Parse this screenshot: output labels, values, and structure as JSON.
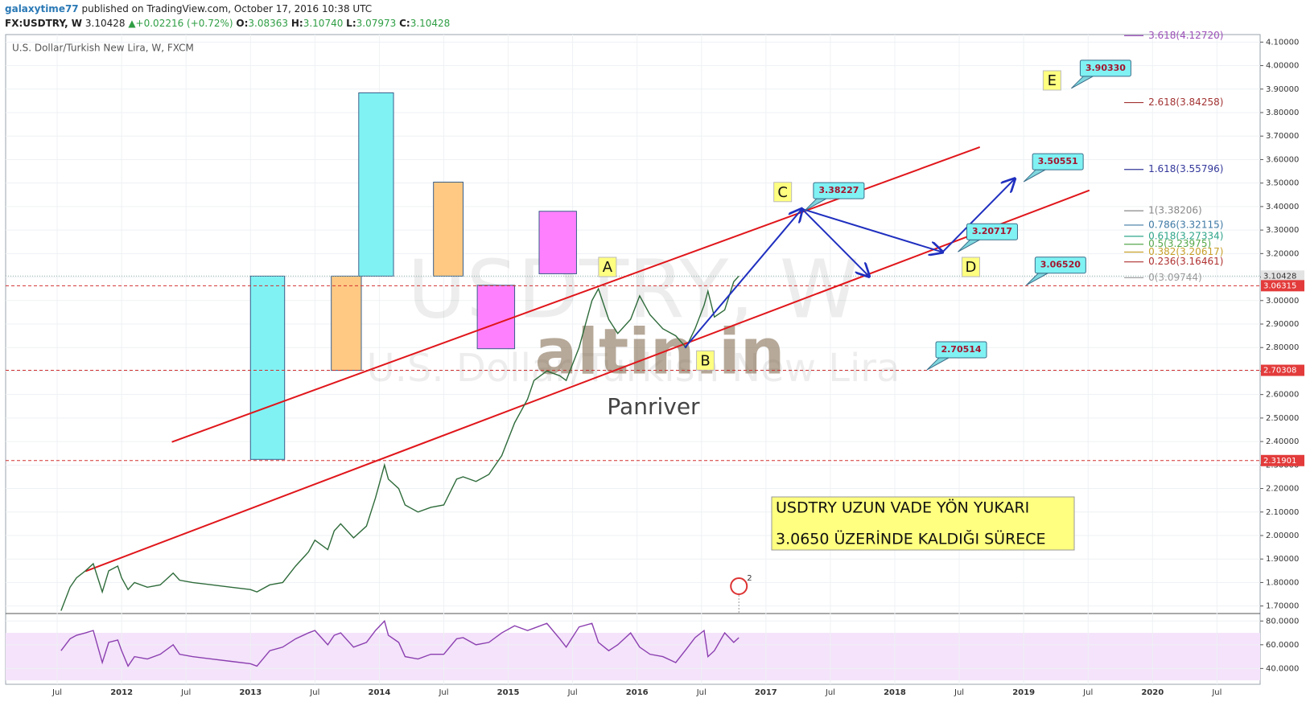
{
  "header": {
    "author": "galaxytime77",
    "published": "published on TradingView.com, October 17, 2016 10:38 UTC",
    "symbol": "FX:USDTRY, W",
    "last": "3.10428",
    "change": "▲+0.02216 (+0.72%)",
    "ohlc": [
      {
        "key": "O:",
        "value": "3.08363"
      },
      {
        "key": "H:",
        "value": "3.10740"
      },
      {
        "key": "L:",
        "value": "3.07973"
      },
      {
        "key": "C:",
        "value": "3.10428"
      }
    ]
  },
  "chart_data": [
    {
      "type": "line",
      "title": "U.S. Dollar/Turkish New Lira, W, FXCM",
      "watermark": "USDTRY, W",
      "watermark_subtitle": "U.S. Dollar/Turkish New Lira",
      "logo": "altin.in",
      "logo_caption": "Panriver",
      "color": "#2e6b3a",
      "grid": true,
      "x": [
        2011.53,
        2011.6,
        2011.65,
        2011.72,
        2011.78,
        2011.85,
        2011.9,
        2011.97,
        2012.0,
        2012.05,
        2012.1,
        2012.2,
        2012.3,
        2012.4,
        2012.45,
        2012.55,
        2012.7,
        2012.85,
        2013.0,
        2013.05,
        2013.15,
        2013.25,
        2013.35,
        2013.45,
        2013.5,
        2013.6,
        2013.65,
        2013.7,
        2013.8,
        2013.9,
        2013.97,
        2014.04,
        2014.07,
        2014.15,
        2014.2,
        2014.3,
        2014.4,
        2014.5,
        2014.6,
        2014.65,
        2014.75,
        2014.85,
        2014.95,
        2015.05,
        2015.15,
        2015.2,
        2015.3,
        2015.4,
        2015.45,
        2015.55,
        2015.65,
        2015.7,
        2015.78,
        2015.85,
        2015.95,
        2016.02,
        2016.1,
        2016.2,
        2016.3,
        2016.38,
        2016.45,
        2016.52,
        2016.55,
        2016.6,
        2016.68,
        2016.75,
        2016.79
      ],
      "values": [
        1.68,
        1.78,
        1.82,
        1.85,
        1.88,
        1.76,
        1.85,
        1.87,
        1.82,
        1.77,
        1.8,
        1.78,
        1.79,
        1.84,
        1.81,
        1.8,
        1.79,
        1.78,
        1.77,
        1.76,
        1.79,
        1.8,
        1.87,
        1.93,
        1.98,
        1.94,
        2.02,
        2.05,
        1.99,
        2.04,
        2.16,
        2.3,
        2.24,
        2.2,
        2.13,
        2.1,
        2.12,
        2.13,
        2.24,
        2.25,
        2.23,
        2.26,
        2.34,
        2.48,
        2.58,
        2.66,
        2.7,
        2.68,
        2.66,
        2.8,
        3.0,
        3.05,
        2.92,
        2.86,
        2.92,
        3.02,
        2.94,
        2.88,
        2.85,
        2.8,
        2.88,
        2.98,
        3.04,
        2.93,
        2.96,
        3.08,
        3.10428
      ],
      "xlim": [
        2011.1,
        2020.835
      ],
      "xticks": [
        {
          "value": 2011.5,
          "label": "Jul"
        },
        2012,
        {
          "value": 2012.5,
          "label": "Jul"
        },
        2013,
        {
          "value": 2013.5,
          "label": "Jul"
        },
        2014,
        {
          "value": 2014.5,
          "label": "Jul"
        },
        2015,
        {
          "value": 2015.5,
          "label": "Jul"
        },
        2016,
        {
          "value": 2016.5,
          "label": "Jul"
        },
        2017,
        {
          "value": 2017.5,
          "label": "Jul"
        },
        2018,
        {
          "value": 2018.5,
          "label": "Jul"
        },
        2019,
        {
          "value": 2019.5,
          "label": "Jul"
        },
        2020,
        {
          "value": 2020.5,
          "label": "Jul"
        }
      ],
      "ylim": [
        1.668,
        4.132
      ],
      "yticks": [
        {
          "value": 1.7,
          "label": "1.70000"
        },
        {
          "value": 1.8,
          "label": "1.80000"
        },
        {
          "value": 1.9,
          "label": "1.90000"
        },
        {
          "value": 2.0,
          "label": "2.00000"
        },
        {
          "value": 2.1,
          "label": "2.10000"
        },
        {
          "value": 2.2,
          "label": "2.20000"
        },
        {
          "value": 2.3,
          "label": "2.30000"
        },
        {
          "value": 2.4,
          "label": "2.40000"
        },
        {
          "value": 2.5,
          "label": "2.50000"
        },
        {
          "value": 2.6,
          "label": "2.60000"
        },
        {
          "value": 2.7,
          "label": "2.70000"
        },
        {
          "value": 2.8,
          "label": "2.80000"
        },
        {
          "value": 2.9,
          "label": "2.90000"
        },
        {
          "value": 3.0,
          "label": "3.00000"
        },
        {
          "value": 3.1,
          "label": "3.10000"
        },
        {
          "value": 3.2,
          "label": "3.20000"
        },
        {
          "value": 3.3,
          "label": "3.30000"
        },
        {
          "value": 3.4,
          "label": "3.40000"
        },
        {
          "value": 3.5,
          "label": "3.50000"
        },
        {
          "value": 3.6,
          "label": "3.60000"
        },
        {
          "value": 3.7,
          "label": "3.70000"
        },
        {
          "value": 3.8,
          "label": "3.80000"
        },
        {
          "value": 3.9,
          "label": "3.90000"
        },
        {
          "value": 4.0,
          "label": "4.00000"
        },
        {
          "value": 4.1,
          "label": "4.10000"
        }
      ],
      "price_lines": [
        {
          "value": 3.10428,
          "label": "3.10428",
          "color": "#8fb3a8",
          "tag_color": "#e3e3e3",
          "text_color": "#333"
        },
        {
          "value": 3.06315,
          "label": "3.06315",
          "color": "#d23030",
          "tag_color": "#e33b3b",
          "text_color": "#fff"
        },
        {
          "value": 2.70308,
          "label": "2.70308",
          "color": "#d23030",
          "tag_color": "#e33b3b",
          "text_color": "#fff"
        },
        {
          "value": 2.31901,
          "label": "2.31901",
          "color": "#d23030",
          "tag_color": "#e33b3b",
          "text_color": "#fff"
        }
      ],
      "boxes": [
        {
          "x": [
            2013.0,
            2013.265
          ],
          "y": [
            2.324,
            3.104
          ],
          "color": "#80f2f4"
        },
        {
          "x": [
            2013.627,
            2013.86
          ],
          "y": [
            2.703,
            3.104
          ],
          "color": "#ffc983"
        },
        {
          "x": [
            2013.84,
            2014.11
          ],
          "y": [
            3.104,
            3.884
          ],
          "color": "#80f2f4"
        },
        {
          "x": [
            2014.42,
            2014.65
          ],
          "y": [
            3.104,
            3.504
          ],
          "color": "#ffc983"
        },
        {
          "x": [
            2014.76,
            2015.05
          ],
          "y": [
            2.795,
            3.065
          ],
          "color": "#ff80ff"
        },
        {
          "x": [
            2015.24,
            2015.53
          ],
          "y": [
            3.114,
            3.38
          ],
          "color": "#ff80ff"
        }
      ],
      "trendlines": [
        {
          "x": [
            2012.39,
            2018.66
          ],
          "y": [
            2.398,
            3.653
          ],
          "color": "#e0161b"
        },
        {
          "x": [
            2011.72,
            2019.51
          ],
          "y": [
            1.848,
            3.469
          ],
          "color": "#e0161b"
        }
      ],
      "arrows": [
        {
          "x": [
            2016.37,
            2017.28
          ],
          "y": [
            2.799,
            3.39
          ]
        },
        {
          "x": [
            2017.28,
            2017.8
          ],
          "y": [
            3.39,
            3.103
          ]
        },
        {
          "x": [
            2017.28,
            2018.37
          ],
          "y": [
            3.39,
            3.206
          ]
        },
        {
          "x": [
            2018.37,
            2018.93
          ],
          "y": [
            3.206,
            3.518
          ]
        }
      ],
      "fib_x": [
        2019.78,
        2019.93
      ],
      "fib_levels": [
        {
          "value": 4.1272,
          "label": "3.618(4.12720)",
          "color": "#9c4fb8"
        },
        {
          "value": 3.84258,
          "label": "2.618(3.84258)",
          "color": "#a33333"
        },
        {
          "value": 3.55796,
          "label": "1.618(3.55796)",
          "color": "#33379a"
        },
        {
          "value": 3.38206,
          "label": "1(3.38206)",
          "color": "#888888"
        },
        {
          "value": 3.32115,
          "label": "0.786(3.32115)",
          "color": "#3f79a5"
        },
        {
          "value": 3.27334,
          "label": "0.618(3.27334)",
          "color": "#2fa58b"
        },
        {
          "value": 3.23975,
          "label": "0.5(3.23975)",
          "color": "#56a84b"
        },
        {
          "value": 3.20617,
          "label": "0.382(3.20617)",
          "color": "#c8a02a"
        },
        {
          "value": 3.16461,
          "label": "0.236(3.16461)",
          "color": "#b03030"
        },
        {
          "value": 3.09744,
          "label": "0(3.09744)",
          "color": "#999999"
        }
      ],
      "callouts": [
        {
          "x": 2019.37,
          "value": 3.9033,
          "label": "3.90330"
        },
        {
          "x": 2019.0,
          "value": 3.50551,
          "label": "3.50551"
        },
        {
          "x": 2017.3,
          "value": 3.38227,
          "label": "3.38227"
        },
        {
          "x": 2018.49,
          "value": 3.20717,
          "label": "3.20717"
        },
        {
          "x": 2019.02,
          "value": 3.0652,
          "label": "3.06520"
        },
        {
          "x": 2018.25,
          "value": 2.70514,
          "label": "2.70514"
        }
      ],
      "wave_labels": [
        {
          "x": 2015.77,
          "value": 3.143,
          "label": "A"
        },
        {
          "x": 2016.53,
          "value": 2.745,
          "label": "B"
        },
        {
          "x": 2017.13,
          "value": 3.462,
          "label": "C"
        },
        {
          "x": 2018.59,
          "value": 3.143,
          "label": "D"
        },
        {
          "x": 2019.22,
          "value": 3.937,
          "label": "E"
        }
      ],
      "note": [
        "USDTRY  UZUN VADE YÖN YUKARI",
        "3.0650 ÜZERİNDE KALDIĞI SÜRECE"
      ],
      "event_marker": {
        "x": 2016.79,
        "count": 2
      }
    },
    {
      "type": "line",
      "color": "#8b3fb0",
      "band": [
        30,
        70
      ],
      "band_color": "#f4e3fa",
      "x": [
        2011.53,
        2011.6,
        2011.65,
        2011.72,
        2011.78,
        2011.85,
        2011.9,
        2011.97,
        2012.0,
        2012.05,
        2012.1,
        2012.2,
        2012.3,
        2012.4,
        2012.45,
        2012.55,
        2012.7,
        2012.85,
        2013.0,
        2013.05,
        2013.15,
        2013.25,
        2013.35,
        2013.45,
        2013.5,
        2013.6,
        2013.65,
        2013.7,
        2013.8,
        2013.9,
        2013.97,
        2014.04,
        2014.07,
        2014.15,
        2014.2,
        2014.3,
        2014.4,
        2014.5,
        2014.6,
        2014.65,
        2014.75,
        2014.85,
        2014.95,
        2015.05,
        2015.15,
        2015.2,
        2015.3,
        2015.4,
        2015.45,
        2015.55,
        2015.65,
        2015.7,
        2015.78,
        2015.85,
        2015.95,
        2016.02,
        2016.1,
        2016.2,
        2016.3,
        2016.38,
        2016.45,
        2016.52,
        2016.55,
        2016.6,
        2016.68,
        2016.75,
        2016.79
      ],
      "values": [
        55,
        65,
        68,
        70,
        72,
        45,
        62,
        64,
        55,
        42,
        50,
        48,
        52,
        60,
        52,
        50,
        48,
        46,
        44,
        42,
        55,
        58,
        65,
        70,
        72,
        60,
        68,
        70,
        58,
        62,
        72,
        80,
        68,
        62,
        50,
        48,
        52,
        52,
        65,
        66,
        60,
        62,
        70,
        76,
        72,
        74,
        78,
        65,
        58,
        75,
        78,
        62,
        55,
        60,
        70,
        58,
        52,
        50,
        45,
        56,
        66,
        72,
        50,
        55,
        70,
        62,
        66
      ],
      "xlim": [
        2011.1,
        2020.835
      ],
      "ylim": [
        26.7,
        86.3
      ],
      "yticks": [
        {
          "value": 40,
          "label": "40.0000"
        },
        {
          "value": 60,
          "label": "60.0000"
        },
        {
          "value": 80,
          "label": "80.0000"
        }
      ]
    }
  ]
}
